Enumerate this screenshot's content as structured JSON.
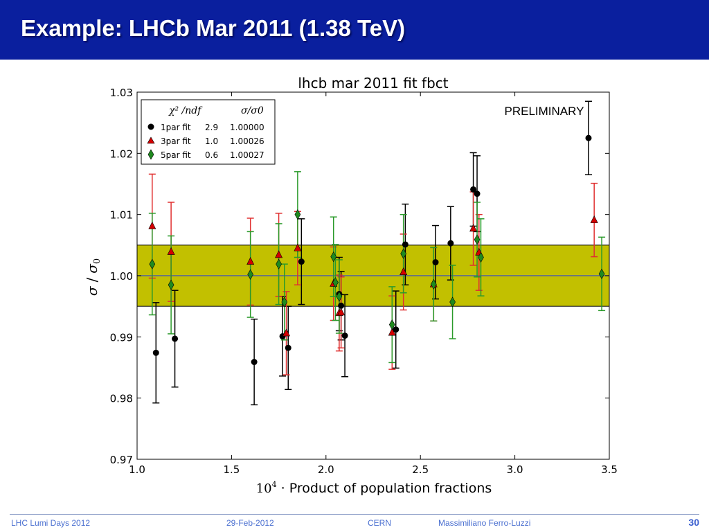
{
  "slide": {
    "title": "Example: LHCb Mar 2011 (1.38 TeV)"
  },
  "footer": {
    "event": "LHC Lumi Days 2012",
    "date": "29-Feb-2012",
    "org": "CERN",
    "author": "Massimiliano Ferro-Luzzi",
    "page": "30"
  },
  "chart_data": {
    "type": "scatter",
    "title": "lhcb mar 2011 fit  fbct",
    "annotation": "PRELIMINARY",
    "xlabel_prefix": "10",
    "xlabel_exponent": "4",
    "xlabel_text": "· Product of population fractions",
    "ylabel_sigma": "σ",
    "ylabel_slash": "/",
    "ylabel_sigma0": "σ",
    "ylabel_sub": "0",
    "xlim": [
      1.0,
      3.5
    ],
    "ylim": [
      0.97,
      1.03
    ],
    "xticks": [
      "1.0",
      "1.5",
      "2.0",
      "2.5",
      "3.0",
      "3.5"
    ],
    "yticks": [
      "0.97",
      "0.98",
      "0.99",
      "1.00",
      "1.01",
      "1.02",
      "1.03"
    ],
    "band": {
      "y_low": 0.995,
      "y_high": 1.005,
      "color": "#c2c000"
    },
    "reference_line": 1.0,
    "legend": {
      "position": "top-left",
      "col1_header": "χ² /ndf",
      "col2_header": "σ/σ0",
      "rows": [
        {
          "label": "1par fit",
          "chi2": "2.9",
          "ratio": "1.00000"
        },
        {
          "label": "3par fit",
          "chi2": "1.0",
          "ratio": "1.00026"
        },
        {
          "label": "5par fit",
          "chi2": "0.6",
          "ratio": "1.00027"
        }
      ]
    },
    "series": [
      {
        "name": "1par fit",
        "marker": "circle",
        "color": "#000000",
        "errcolor": "#000000",
        "dx": 0.02,
        "points": [
          {
            "x": 1.08,
            "y": 0.9874,
            "err": 0.0082
          },
          {
            "x": 1.18,
            "y": 0.9897,
            "err": 0.0079
          },
          {
            "x": 1.6,
            "y": 0.9859,
            "err": 0.007
          },
          {
            "x": 1.75,
            "y": 0.9901,
            "err": 0.0065
          },
          {
            "x": 1.78,
            "y": 0.9882,
            "err": 0.0068
          },
          {
            "x": 1.85,
            "y": 1.0023,
            "err": 0.007
          },
          {
            "x": 2.05,
            "y": 0.997,
            "err": 0.006
          },
          {
            "x": 2.06,
            "y": 0.9951,
            "err": 0.0056
          },
          {
            "x": 2.08,
            "y": 0.9902,
            "err": 0.0067
          },
          {
            "x": 2.35,
            "y": 0.9912,
            "err": 0.0063
          },
          {
            "x": 2.4,
            "y": 1.0051,
            "err": 0.0066
          },
          {
            "x": 2.56,
            "y": 1.0022,
            "err": 0.006
          },
          {
            "x": 2.64,
            "y": 1.0053,
            "err": 0.006
          },
          {
            "x": 2.76,
            "y": 1.0141,
            "err": 0.006
          },
          {
            "x": 2.78,
            "y": 1.0134,
            "err": 0.0062
          },
          {
            "x": 3.37,
            "y": 1.0225,
            "err": 0.006
          }
        ]
      },
      {
        "name": "3par fit",
        "marker": "triangle",
        "color": "#d40000",
        "errcolor": "#e03030",
        "dx": 0.0,
        "points": [
          {
            "x": 1.08,
            "y": 1.0081,
            "err": 0.0085
          },
          {
            "x": 1.18,
            "y": 1.0039,
            "err": 0.0081
          },
          {
            "x": 1.6,
            "y": 1.0023,
            "err": 0.0071
          },
          {
            "x": 1.75,
            "y": 1.0034,
            "err": 0.0068
          },
          {
            "x": 1.79,
            "y": 0.9906,
            "err": 0.0068
          },
          {
            "x": 1.85,
            "y": 1.0045,
            "err": 0.006
          },
          {
            "x": 2.04,
            "y": 0.9987,
            "err": 0.006
          },
          {
            "x": 2.07,
            "y": 0.9939,
            "err": 0.0062
          },
          {
            "x": 2.08,
            "y": 0.994,
            "err": 0.0058
          },
          {
            "x": 2.35,
            "y": 0.9907,
            "err": 0.006
          },
          {
            "x": 2.41,
            "y": 1.0006,
            "err": 0.0062
          },
          {
            "x": 2.57,
            "y": 0.9986,
            "err": 0.006
          },
          {
            "x": 2.78,
            "y": 1.0077,
            "err": 0.006
          },
          {
            "x": 2.81,
            "y": 1.0038,
            "err": 0.0062
          },
          {
            "x": 3.42,
            "y": 1.0091,
            "err": 0.006
          }
        ]
      },
      {
        "name": "5par fit",
        "marker": "diamond",
        "color": "#1f8a1f",
        "errcolor": "#2a9a2a",
        "dx": 0.0,
        "points": [
          {
            "x": 1.08,
            "y": 1.0019,
            "err": 0.0083
          },
          {
            "x": 1.18,
            "y": 0.9985,
            "err": 0.008
          },
          {
            "x": 1.6,
            "y": 1.0002,
            "err": 0.007
          },
          {
            "x": 1.75,
            "y": 1.0019,
            "err": 0.0066
          },
          {
            "x": 1.78,
            "y": 0.9957,
            "err": 0.0062
          },
          {
            "x": 1.85,
            "y": 1.01,
            "err": 0.007
          },
          {
            "x": 2.04,
            "y": 1.0031,
            "err": 0.0065
          },
          {
            "x": 2.05,
            "y": 0.9989,
            "err": 0.0062
          },
          {
            "x": 2.07,
            "y": 0.9966,
            "err": 0.006
          },
          {
            "x": 2.35,
            "y": 0.992,
            "err": 0.0062
          },
          {
            "x": 2.41,
            "y": 1.0036,
            "err": 0.0064
          },
          {
            "x": 2.57,
            "y": 0.9986,
            "err": 0.006
          },
          {
            "x": 2.67,
            "y": 0.9957,
            "err": 0.006
          },
          {
            "x": 2.8,
            "y": 1.0059,
            "err": 0.0061
          },
          {
            "x": 2.82,
            "y": 1.003,
            "err": 0.0063
          },
          {
            "x": 3.46,
            "y": 1.0003,
            "err": 0.006
          }
        ]
      }
    ]
  }
}
